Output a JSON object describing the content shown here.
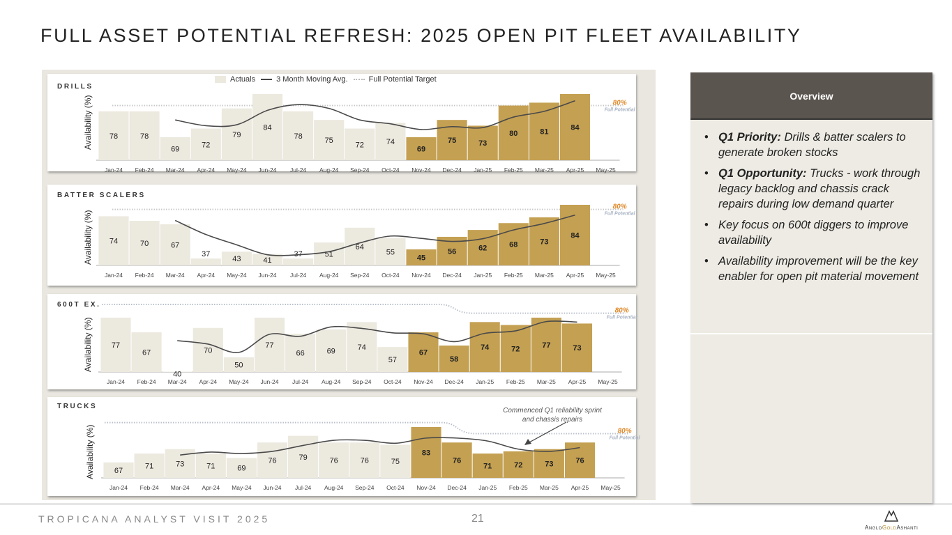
{
  "header": {
    "title": "FULL ASSET POTENTIAL REFRESH: 2025 OPEN PIT FLEET AVAILABILITY"
  },
  "legend": {
    "actuals": "Actuals",
    "moving_avg": "3 Month Moving Avg.",
    "target": "Full Potential Target"
  },
  "overview": {
    "title": "Overview",
    "bullets": [
      {
        "bold": "Q1 Priority:",
        "text": " Drills & batter scalers to generate broken stocks"
      },
      {
        "bold": "Q1 Opportunity:",
        "text": " Trucks -  work through legacy backlog and chassis crack repairs during low demand quarter"
      },
      {
        "bold": "",
        "text": "Key focus on 600t diggers to improve  availability"
      },
      {
        "bold": "",
        "text": "Availability improvement will be the key enabler for open pit material movement"
      }
    ]
  },
  "footer": {
    "event": "TROPICANA ANALYST VISIT 2025",
    "page": "21",
    "logo": "ANGLOGOLDASHANTI"
  },
  "colors": {
    "actual_bar": "#ece9df",
    "highlight_bar": "#c4a052",
    "moving_avg": "#4a4a4a",
    "target_label": "#e08a2a",
    "full_potential": "#a9b4c4"
  },
  "chart_data": [
    {
      "type": "bar",
      "title": "DRILLS",
      "ylabel": "Availability (%)",
      "ylim": [
        61,
        86
      ],
      "categories": [
        "Jan-24",
        "Feb-24",
        "Mar-24",
        "Apr-24",
        "May-24",
        "Jun-24",
        "Jul-24",
        "Aug-24",
        "Sep-24",
        "Oct-24",
        "Nov-24",
        "Dec-24",
        "Jan-25",
        "Feb-25",
        "Mar-25",
        "Apr-25",
        "May-25"
      ],
      "values": [
        78,
        78,
        69,
        72,
        79,
        84,
        78,
        75,
        72,
        74,
        69,
        75,
        73,
        80,
        81,
        84,
        null
      ],
      "highlight_from": "Nov-24",
      "target": {
        "value": 80,
        "label": "80%",
        "sublabel": "Full Potential"
      }
    },
    {
      "type": "bar",
      "title": "BATTER SCALERS",
      "ylabel": "Availability (%)",
      "ylim": [
        31,
        86
      ],
      "categories": [
        "Jan-24",
        "Feb-24",
        "Mar-24",
        "Apr-24",
        "May-24",
        "Jun-24",
        "Jul-24",
        "Aug-24",
        "Sep-24",
        "Oct-24",
        "Nov-24",
        "Dec-24",
        "Jan-25",
        "Feb-25",
        "Mar-25",
        "Apr-25",
        "May-25"
      ],
      "values": [
        74,
        70,
        67,
        37,
        43,
        41,
        37,
        51,
        64,
        55,
        45,
        56,
        62,
        68,
        73,
        84,
        null
      ],
      "highlight_from": "Nov-24",
      "target": {
        "value": 80,
        "label": "80%",
        "sublabel": "Full Potential"
      }
    },
    {
      "type": "bar",
      "title": "600T EX.",
      "ylabel": "Availability (%)",
      "ylim": [
        40,
        86
      ],
      "categories": [
        "Jan-24",
        "Feb-24",
        "Mar-24",
        "Apr-24",
        "May-24",
        "Jun-24",
        "Jul-24",
        "Aug-24",
        "Sep-24",
        "Oct-24",
        "Nov-24",
        "Dec-24",
        "Jan-25",
        "Feb-25",
        "Mar-25",
        "Apr-25",
        "May-25"
      ],
      "values": [
        77,
        67,
        40,
        70,
        50,
        77,
        66,
        69,
        74,
        57,
        67,
        58,
        74,
        72,
        77,
        73,
        null
      ],
      "highlight_from": "Nov-24",
      "target": {
        "value": 80,
        "earlier_value": 86,
        "label": "80%",
        "sublabel": "Full Potential"
      }
    },
    {
      "type": "bar",
      "title": "TRUCKS",
      "ylabel": "Availability (%)",
      "ylim": [
        60,
        86
      ],
      "categories": [
        "Jan-24",
        "Feb-24",
        "Mar-24",
        "Apr-24",
        "May-24",
        "Jun-24",
        "Jul-24",
        "Aug-24",
        "Sep-24",
        "Oct-24",
        "Nov-24",
        "Dec-24",
        "Jan-25",
        "Feb-25",
        "Mar-25",
        "Apr-25",
        "May-25"
      ],
      "values": [
        67,
        71,
        73,
        71,
        69,
        76,
        79,
        76,
        76,
        75,
        83,
        76,
        71,
        72,
        73,
        76,
        null
      ],
      "highlight_from": "Nov-24",
      "target": {
        "value": 80,
        "earlier_value": 85,
        "label": "80%",
        "sublabel": "Full Potential"
      },
      "annotation": "Commenced Q1 reliability sprint and chassis repairs"
    }
  ]
}
